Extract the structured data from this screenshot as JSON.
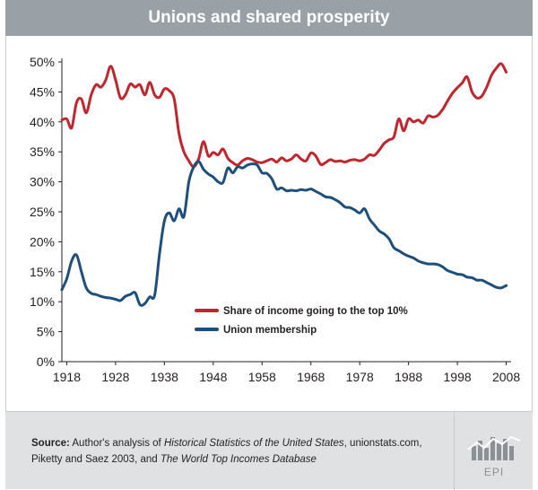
{
  "chart_data": {
    "type": "line",
    "title": "Unions and shared prosperity",
    "xlabel": "",
    "ylabel": "",
    "xlim": [
      1917,
      2009
    ],
    "ylim": [
      0,
      50
    ],
    "x_ticks": [
      1918,
      1928,
      1938,
      1948,
      1958,
      1968,
      1978,
      1988,
      1998,
      2008
    ],
    "x_tick_labels": [
      "1918",
      "1928",
      "1938",
      "1948",
      "1958",
      "1968",
      "1978",
      "1988",
      "1998",
      "2008"
    ],
    "y_ticks": [
      0,
      5,
      10,
      15,
      20,
      25,
      30,
      35,
      40,
      45,
      50
    ],
    "y_tick_labels": [
      "0%",
      "5%",
      "10%",
      "15%",
      "20%",
      "25%",
      "30%",
      "35%",
      "40%",
      "45%",
      "50%"
    ],
    "grid": false,
    "legend_position": "center",
    "series": [
      {
        "name": "Share of income going to the top 10%",
        "color": "#c0262d",
        "points": [
          [
            1917,
            40.3
          ],
          [
            1918,
            40.5
          ],
          [
            1919,
            39.0
          ],
          [
            1920,
            43.2
          ],
          [
            1921,
            43.8
          ],
          [
            1922,
            41.5
          ],
          [
            1923,
            44.5
          ],
          [
            1924,
            46.2
          ],
          [
            1925,
            45.8
          ],
          [
            1926,
            47.0
          ],
          [
            1927,
            49.3
          ],
          [
            1928,
            47.0
          ],
          [
            1929,
            44.0
          ],
          [
            1930,
            44.5
          ],
          [
            1931,
            46.3
          ],
          [
            1932,
            45.8
          ],
          [
            1933,
            46.2
          ],
          [
            1934,
            44.5
          ],
          [
            1935,
            46.6
          ],
          [
            1936,
            44.5
          ],
          [
            1937,
            44.1
          ],
          [
            1938,
            45.5
          ],
          [
            1939,
            45.2
          ],
          [
            1940,
            43.8
          ],
          [
            1941,
            38.0
          ],
          [
            1942,
            35.0
          ],
          [
            1943,
            33.5
          ],
          [
            1944,
            32.5
          ],
          [
            1945,
            33.8
          ],
          [
            1946,
            36.7
          ],
          [
            1947,
            34.3
          ],
          [
            1948,
            34.9
          ],
          [
            1949,
            34.5
          ],
          [
            1950,
            35.5
          ],
          [
            1951,
            33.9
          ],
          [
            1952,
            33.2
          ],
          [
            1953,
            32.8
          ],
          [
            1954,
            33.5
          ],
          [
            1955,
            33.9
          ],
          [
            1956,
            33.7
          ],
          [
            1957,
            33.3
          ],
          [
            1958,
            33.2
          ],
          [
            1959,
            33.5
          ],
          [
            1960,
            33.8
          ],
          [
            1961,
            33.3
          ],
          [
            1962,
            34.0
          ],
          [
            1963,
            33.5
          ],
          [
            1964,
            33.8
          ],
          [
            1965,
            34.5
          ],
          [
            1966,
            33.8
          ],
          [
            1967,
            33.5
          ],
          [
            1968,
            34.8
          ],
          [
            1969,
            34.3
          ],
          [
            1970,
            32.9
          ],
          [
            1971,
            33.2
          ],
          [
            1972,
            33.7
          ],
          [
            1973,
            33.4
          ],
          [
            1974,
            33.5
          ],
          [
            1975,
            33.3
          ],
          [
            1976,
            33.6
          ],
          [
            1977,
            33.7
          ],
          [
            1978,
            33.5
          ],
          [
            1979,
            33.8
          ],
          [
            1980,
            34.5
          ],
          [
            1981,
            34.4
          ],
          [
            1982,
            35.3
          ],
          [
            1983,
            36.4
          ],
          [
            1984,
            37.0
          ],
          [
            1985,
            37.5
          ],
          [
            1986,
            40.5
          ],
          [
            1987,
            38.5
          ],
          [
            1988,
            40.5
          ],
          [
            1989,
            40.0
          ],
          [
            1990,
            40.3
          ],
          [
            1991,
            39.8
          ],
          [
            1992,
            41.0
          ],
          [
            1993,
            40.8
          ],
          [
            1994,
            41.1
          ],
          [
            1995,
            42.1
          ],
          [
            1996,
            43.5
          ],
          [
            1997,
            44.8
          ],
          [
            1998,
            45.7
          ],
          [
            1999,
            46.5
          ],
          [
            2000,
            47.5
          ],
          [
            2001,
            45.0
          ],
          [
            2002,
            44.0
          ],
          [
            2003,
            44.3
          ],
          [
            2004,
            45.8
          ],
          [
            2005,
            47.8
          ],
          [
            2006,
            49.0
          ],
          [
            2007,
            49.7
          ],
          [
            2008,
            48.3
          ]
        ]
      },
      {
        "name": "Union membership",
        "color": "#1d4f7c",
        "points": [
          [
            1917,
            12.0
          ],
          [
            1918,
            13.8
          ],
          [
            1919,
            16.8
          ],
          [
            1920,
            17.8
          ],
          [
            1921,
            15.0
          ],
          [
            1922,
            12.3
          ],
          [
            1923,
            11.4
          ],
          [
            1924,
            11.2
          ],
          [
            1925,
            10.9
          ],
          [
            1926,
            10.7
          ],
          [
            1927,
            10.6
          ],
          [
            1928,
            10.4
          ],
          [
            1929,
            10.2
          ],
          [
            1930,
            10.9
          ],
          [
            1931,
            11.2
          ],
          [
            1932,
            11.5
          ],
          [
            1933,
            9.5
          ],
          [
            1934,
            9.7
          ],
          [
            1935,
            10.8
          ],
          [
            1936,
            11.1
          ],
          [
            1937,
            18.0
          ],
          [
            1938,
            23.5
          ],
          [
            1939,
            24.8
          ],
          [
            1940,
            23.5
          ],
          [
            1941,
            25.5
          ],
          [
            1942,
            24.2
          ],
          [
            1943,
            30.0
          ],
          [
            1944,
            32.5
          ],
          [
            1945,
            33.4
          ],
          [
            1946,
            32.1
          ],
          [
            1947,
            31.3
          ],
          [
            1948,
            30.8
          ],
          [
            1949,
            30.0
          ],
          [
            1950,
            29.9
          ],
          [
            1951,
            32.3
          ],
          [
            1952,
            31.5
          ],
          [
            1953,
            32.5
          ],
          [
            1954,
            32.3
          ],
          [
            1955,
            32.8
          ],
          [
            1956,
            33.0
          ],
          [
            1957,
            32.8
          ],
          [
            1958,
            31.5
          ],
          [
            1959,
            31.4
          ],
          [
            1960,
            30.5
          ],
          [
            1961,
            28.8
          ],
          [
            1962,
            29.0
          ],
          [
            1963,
            28.5
          ],
          [
            1964,
            28.6
          ],
          [
            1965,
            28.5
          ],
          [
            1966,
            28.7
          ],
          [
            1967,
            28.6
          ],
          [
            1968,
            28.8
          ],
          [
            1969,
            28.4
          ],
          [
            1970,
            28.0
          ],
          [
            1971,
            27.5
          ],
          [
            1972,
            27.4
          ],
          [
            1973,
            27.0
          ],
          [
            1974,
            26.5
          ],
          [
            1975,
            25.8
          ],
          [
            1976,
            25.7
          ],
          [
            1977,
            25.3
          ],
          [
            1978,
            24.8
          ],
          [
            1979,
            25.5
          ],
          [
            1980,
            23.8
          ],
          [
            1981,
            22.8
          ],
          [
            1982,
            21.8
          ],
          [
            1983,
            21.3
          ],
          [
            1984,
            20.5
          ],
          [
            1985,
            19.0
          ],
          [
            1986,
            18.5
          ],
          [
            1987,
            18.0
          ],
          [
            1988,
            17.6
          ],
          [
            1989,
            17.3
          ],
          [
            1990,
            16.8
          ],
          [
            1991,
            16.5
          ],
          [
            1992,
            16.3
          ],
          [
            1993,
            16.3
          ],
          [
            1994,
            16.2
          ],
          [
            1995,
            15.8
          ],
          [
            1996,
            15.2
          ],
          [
            1997,
            14.9
          ],
          [
            1998,
            14.6
          ],
          [
            1999,
            14.5
          ],
          [
            2000,
            14.1
          ],
          [
            2001,
            14.0
          ],
          [
            2002,
            13.6
          ],
          [
            2003,
            13.6
          ],
          [
            2004,
            13.2
          ],
          [
            2005,
            12.8
          ],
          [
            2006,
            12.4
          ],
          [
            2007,
            12.3
          ],
          [
            2008,
            12.7
          ]
        ]
      }
    ]
  },
  "footer": {
    "source_label": "Source:",
    "source_part1": " Author's analysis of ",
    "source_italic1": "Historical Statistics of the United States",
    "source_part2": ", unionstats.com, Piketty and Saez 2003, and ",
    "source_italic2": "The World Top Incomes Database",
    "logo_text": "EPI"
  }
}
